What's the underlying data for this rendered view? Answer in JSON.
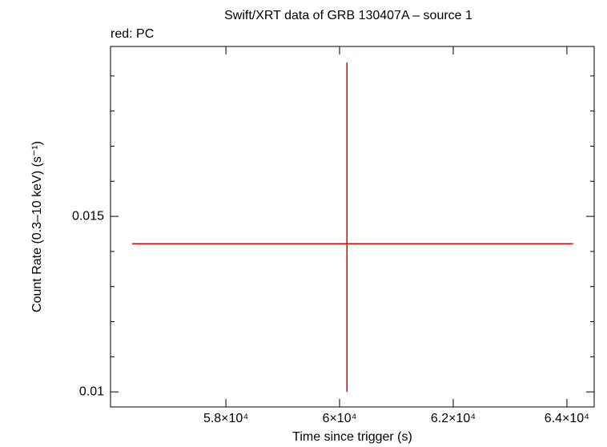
{
  "chart_data": {
    "type": "errorbar",
    "title": "Swift/XRT data of GRB 130407A – source 1",
    "annotation": "red: PC",
    "x_label": "Time since trigger (s)",
    "y_label": "Count Rate (0.3–10 keV) (s⁻¹)",
    "color": "#e00000",
    "x": [
      60130
    ],
    "x_low": [
      56350
    ],
    "x_high": [
      64110
    ],
    "values": [
      0.01422
    ],
    "y_low": [
      0.01
    ],
    "y_high": [
      0.01938
    ],
    "xlim": [
      55970,
      64480
    ],
    "xticks": [
      {
        "value": 58000,
        "label": "5.8×10⁴"
      },
      {
        "value": 60000,
        "label": "6×10⁴"
      },
      {
        "value": 62000,
        "label": "6.2×10⁴"
      },
      {
        "value": 64000,
        "label": "6.4×10⁴"
      }
    ],
    "ylim": [
      0.00957,
      0.01984
    ],
    "yticks": [
      0.01,
      0.015
    ],
    "yminor_ticks": [
      0.011,
      0.012,
      0.013,
      0.014,
      0.016,
      0.017,
      0.018,
      0.019
    ]
  }
}
